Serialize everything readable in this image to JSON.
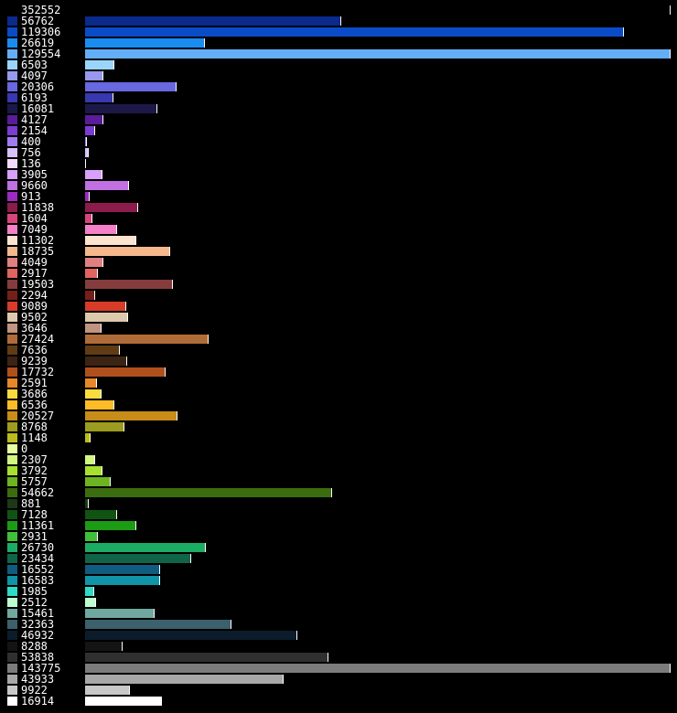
{
  "chart_data": {
    "type": "bar",
    "orientation": "horizontal",
    "background": "#000000",
    "label_color": "#ffffff",
    "separator_color": "#ffffff",
    "bar_fill_max": 129554,
    "rows": [
      {
        "label": "352552",
        "value": 352552,
        "color": "#000000"
      },
      {
        "label": "56762",
        "value": 56762,
        "color": "#0a2a8c"
      },
      {
        "label": "119306",
        "value": 119306,
        "color": "#0a4bc8"
      },
      {
        "label": "26619",
        "value": 26619,
        "color": "#1a8cf0"
      },
      {
        "label": "129554",
        "value": 129554,
        "color": "#64aef8"
      },
      {
        "label": "6503",
        "value": 6503,
        "color": "#9ad6fc"
      },
      {
        "label": "4097",
        "value": 4097,
        "color": "#9898ec"
      },
      {
        "label": "20306",
        "value": 20306,
        "color": "#6868e0"
      },
      {
        "label": "6193",
        "value": 6193,
        "color": "#3838b0"
      },
      {
        "label": "16081",
        "value": 16081,
        "color": "#1c1848"
      },
      {
        "label": "4127",
        "value": 4127,
        "color": "#5a1c98"
      },
      {
        "label": "2154",
        "value": 2154,
        "color": "#7c3cd0"
      },
      {
        "label": "400",
        "value": 400,
        "color": "#a07cf0"
      },
      {
        "label": "756",
        "value": 756,
        "color": "#d8c0fc"
      },
      {
        "label": "136",
        "value": 136,
        "color": "#f4dcfc"
      },
      {
        "label": "3905",
        "value": 3905,
        "color": "#d8a0fc"
      },
      {
        "label": "9660",
        "value": 9660,
        "color": "#c070e0"
      },
      {
        "label": "913",
        "value": 913,
        "color": "#9c2cc0"
      },
      {
        "label": "11838",
        "value": 11838,
        "color": "#8c1c4c"
      },
      {
        "label": "1604",
        "value": 1604,
        "color": "#d8447c"
      },
      {
        "label": "7049",
        "value": 7049,
        "color": "#f480c8"
      },
      {
        "label": "11302",
        "value": 11302,
        "color": "#fce4d0"
      },
      {
        "label": "18735",
        "value": 18735,
        "color": "#f4b88c"
      },
      {
        "label": "4049",
        "value": 4049,
        "color": "#e08080"
      },
      {
        "label": "2917",
        "value": 2917,
        "color": "#e06460"
      },
      {
        "label": "19503",
        "value": 19503,
        "color": "#843c3c"
      },
      {
        "label": "2294",
        "value": 2294,
        "color": "#742018"
      },
      {
        "label": "9089",
        "value": 9089,
        "color": "#d83c28"
      },
      {
        "label": "9502",
        "value": 9502,
        "color": "#dcc8ac"
      },
      {
        "label": "3646",
        "value": 3646,
        "color": "#c09480"
      },
      {
        "label": "27424",
        "value": 27424,
        "color": "#b06c38"
      },
      {
        "label": "7636",
        "value": 7636,
        "color": "#603c14"
      },
      {
        "label": "9239",
        "value": 9239,
        "color": "#3c2414"
      },
      {
        "label": "17732",
        "value": 17732,
        "color": "#b0501c"
      },
      {
        "label": "2591",
        "value": 2591,
        "color": "#e8862c"
      },
      {
        "label": "3686",
        "value": 3686,
        "color": "#fcdc3c"
      },
      {
        "label": "6536",
        "value": 6536,
        "color": "#fcbc28"
      },
      {
        "label": "20527",
        "value": 20527,
        "color": "#c88c18"
      },
      {
        "label": "8768",
        "value": 8768,
        "color": "#9c9c20"
      },
      {
        "label": "1148",
        "value": 1148,
        "color": "#bcbc1c"
      },
      {
        "label": "0",
        "value": 0,
        "color": "#e8fca0"
      },
      {
        "label": "2307",
        "value": 2307,
        "color": "#d0f880"
      },
      {
        "label": "3792",
        "value": 3792,
        "color": "#a8e030"
      },
      {
        "label": "5757",
        "value": 5757,
        "color": "#6cb420"
      },
      {
        "label": "54662",
        "value": 54662,
        "color": "#3c6c10"
      },
      {
        "label": "881",
        "value": 881,
        "color": "#1c3818"
      },
      {
        "label": "7128",
        "value": 7128,
        "color": "#105414"
      },
      {
        "label": "11361",
        "value": 11361,
        "color": "#1c9c14"
      },
      {
        "label": "2931",
        "value": 2931,
        "color": "#40c038"
      },
      {
        "label": "26730",
        "value": 26730,
        "color": "#1cac64"
      },
      {
        "label": "23434",
        "value": 23434,
        "color": "#106448"
      },
      {
        "label": "16552",
        "value": 16552,
        "color": "#105c80"
      },
      {
        "label": "16583",
        "value": 16583,
        "color": "#1094a8"
      },
      {
        "label": "1985",
        "value": 1985,
        "color": "#2cdcc8"
      },
      {
        "label": "2512",
        "value": 2512,
        "color": "#bcfcd0"
      },
      {
        "label": "15461",
        "value": 15461,
        "color": "#70a8a0"
      },
      {
        "label": "32363",
        "value": 32363,
        "color": "#3c606c"
      },
      {
        "label": "46932",
        "value": 46932,
        "color": "#0c1c2c"
      },
      {
        "label": "8288",
        "value": 8288,
        "color": "#141414"
      },
      {
        "label": "53838",
        "value": 53838,
        "color": "#303030"
      },
      {
        "label": "143775",
        "value": 143775,
        "color": "#7c7c7c"
      },
      {
        "label": "43933",
        "value": 43933,
        "color": "#a8a8a8"
      },
      {
        "label": "9922",
        "value": 9922,
        "color": "#c8c8c8"
      },
      {
        "label": "16914",
        "value": 16914,
        "color": "#ffffff"
      }
    ]
  }
}
